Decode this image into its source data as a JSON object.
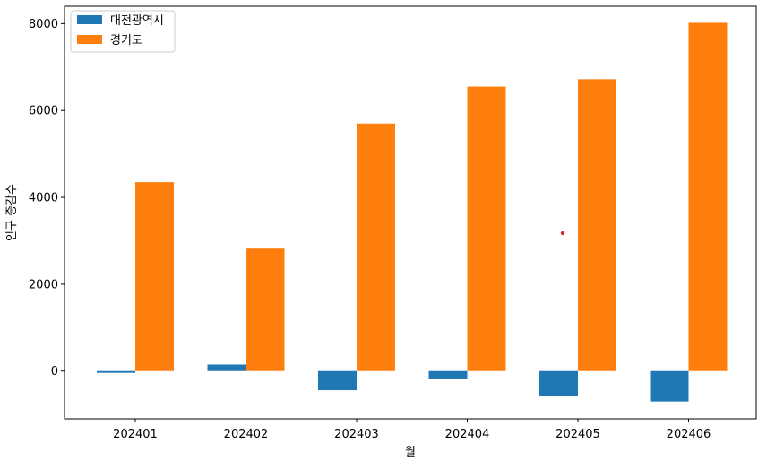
{
  "chart_data": {
    "type": "bar",
    "categories": [
      "202401",
      "202402",
      "202403",
      "202404",
      "202405",
      "202406"
    ],
    "series": [
      {
        "name": "대전광역시",
        "color": "#1f77b4",
        "values": [
          -40,
          150,
          -440,
          -170,
          -580,
          -700
        ]
      },
      {
        "name": "경기도",
        "color": "#ff7f0e",
        "values": [
          4350,
          2820,
          5700,
          6550,
          6720,
          8020
        ]
      }
    ],
    "xlabel": "월",
    "ylabel": "인구 증감수",
    "ylim": [
      -1100,
      8400
    ],
    "yticks": [
      0,
      2000,
      4000,
      6000,
      8000
    ],
    "legend_position": "top-left",
    "grid": false,
    "annotation_color": "#d62728"
  }
}
